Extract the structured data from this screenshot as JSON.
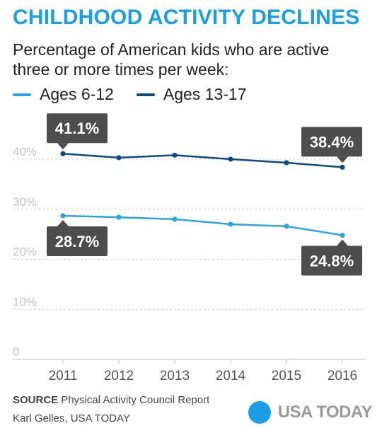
{
  "header": {
    "title": "CHILDHOOD ACTIVITY DECLINES",
    "subtitle": "Percentage of American kids who are active three or more times per week:"
  },
  "footer": {
    "source_label": "SOURCE",
    "source_text": "Physical Activity Council Report",
    "credit": "Karl Gelles, USA TODAY",
    "logo_text": "USA TODAY"
  },
  "colors": {
    "accent": "#1a9ee6",
    "title": "#1a9ee6",
    "series_young": "#2ba3e6",
    "series_teen": "#0d4a84",
    "callout_bg": "#4d4d4d",
    "grid": "#cccccc"
  },
  "chart_data": {
    "type": "line",
    "x": [
      "2011",
      "2012",
      "2013",
      "2014",
      "2015",
      "2016"
    ],
    "ylim": [
      0,
      40
    ],
    "yticks": [
      {
        "value": 0,
        "label": "0"
      },
      {
        "value": 10,
        "label": "10%"
      },
      {
        "value": 20,
        "label": "20%"
      },
      {
        "value": 30,
        "label": "30%"
      },
      {
        "value": 40,
        "label": "40%"
      }
    ],
    "grid": true,
    "legend": "top-left",
    "series": [
      {
        "name": "Ages 6-12",
        "color": "#2ba3e6",
        "values": [
          28.7,
          28.4,
          28.0,
          27.0,
          26.6,
          24.8
        ]
      },
      {
        "name": "Ages 13-17",
        "color": "#0d4a84",
        "values": [
          41.1,
          40.3,
          40.8,
          40.0,
          39.3,
          38.4
        ]
      }
    ],
    "annotations": [
      {
        "series": 1,
        "index": 0,
        "label": "41.1%",
        "position": "above"
      },
      {
        "series": 1,
        "index": 5,
        "label": "38.4%",
        "position": "above"
      },
      {
        "series": 0,
        "index": 0,
        "label": "28.7%",
        "position": "below"
      },
      {
        "series": 0,
        "index": 5,
        "label": "24.8%",
        "position": "below"
      }
    ]
  }
}
